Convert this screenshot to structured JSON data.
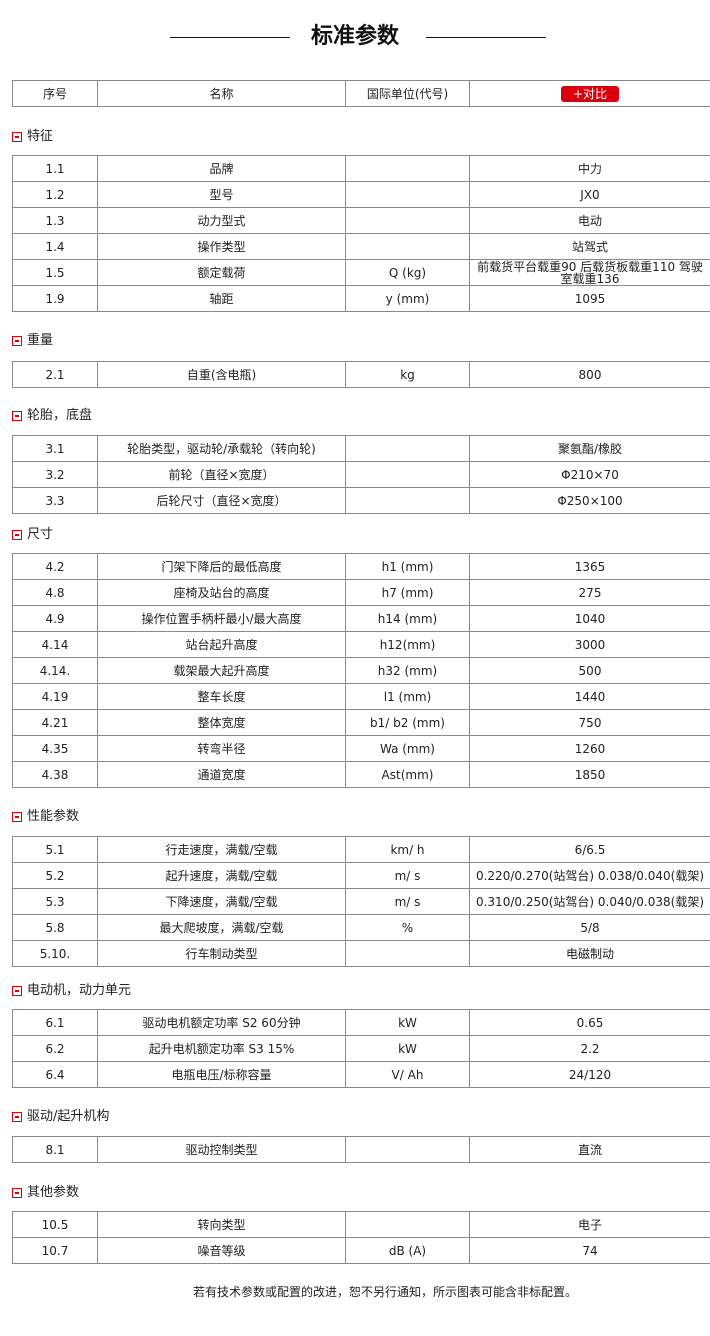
{
  "title": "标准参数",
  "header": {
    "col1": "序号",
    "col2": "名称",
    "col3": "国际单位(代号)",
    "compare_button": "+对比"
  },
  "accent_color": "#d9000e",
  "sections": [
    {
      "name": "特征",
      "rows": [
        [
          "1.1",
          "品牌",
          "",
          "中力"
        ],
        [
          "1.2",
          "型号",
          "",
          "JX0"
        ],
        [
          "1.3",
          "动力型式",
          "",
          "电动"
        ],
        [
          "1.4",
          "操作类型",
          "",
          "站驾式"
        ],
        [
          "1.5",
          "额定载荷",
          "Q (kg)",
          "前载货平台载重90 后载货板载重110 驾驶室载重136"
        ],
        [
          "1.9",
          "轴距",
          "y (mm)",
          "1095"
        ]
      ]
    },
    {
      "name": "重量",
      "rows": [
        [
          "2.1",
          "自重(含电瓶)",
          "kg",
          "800"
        ]
      ]
    },
    {
      "name": "轮胎，底盘",
      "rows": [
        [
          "3.1",
          "轮胎类型，驱动轮/承载轮（转向轮)",
          "",
          "聚氨酯/橡胶"
        ],
        [
          "3.2",
          "前轮（直径×宽度）",
          "",
          "Φ210×70"
        ],
        [
          "3.3",
          "后轮尺寸（直径×宽度）",
          "",
          "Φ250×100"
        ]
      ]
    },
    {
      "name": "尺寸",
      "rows": [
        [
          "4.2",
          "门架下降后的最低高度",
          "h1 (mm)",
          "1365"
        ],
        [
          "4.8",
          "座椅及站台的高度",
          "h7 (mm)",
          "275"
        ],
        [
          "4.9",
          "操作位置手柄杆最小/最大高度",
          "h14 (mm)",
          "1040"
        ],
        [
          "4.14",
          "站台起升高度",
          "h12(mm)",
          "3000"
        ],
        [
          "4.14.",
          "载架最大起升高度",
          "h32 (mm)",
          "500"
        ],
        [
          "4.19",
          "整车长度",
          "l1 (mm)",
          "1440"
        ],
        [
          "4.21",
          "整体宽度",
          "b1/ b2 (mm)",
          "750"
        ],
        [
          "4.35",
          "转弯半径",
          "Wa (mm)",
          "1260"
        ],
        [
          "4.38",
          "通道宽度",
          "Ast(mm)",
          "1850"
        ]
      ]
    },
    {
      "name": "性能参数",
      "rows": [
        [
          "5.1",
          "行走速度，满载/空载",
          "km/ h",
          "6/6.5"
        ],
        [
          "5.2",
          "起升速度，满载/空载",
          "m/ s",
          "0.220/0.270(站驾台) 0.038/0.040(载架)"
        ],
        [
          "5.3",
          "下降速度，满载/空载",
          "m/ s",
          "0.310/0.250(站驾台) 0.040/0.038(载架)"
        ],
        [
          "5.8",
          "最大爬坡度，满载/空载",
          "%",
          "5/8"
        ],
        [
          "5.10.",
          "行车制动类型",
          "",
          "电磁制动"
        ]
      ]
    },
    {
      "name": "电动机，动力单元",
      "rows": [
        [
          "6.1",
          "驱动电机额定功率 S2 60分钟",
          "kW",
          "0.65"
        ],
        [
          "6.2",
          "起升电机额定功率 S3 15%",
          "kW",
          "2.2"
        ],
        [
          "6.4",
          "电瓶电压/标称容量",
          "V/ Ah",
          "24/120"
        ]
      ]
    },
    {
      "name": "驱动/起升机构",
      "rows": [
        [
          "8.1",
          "驱动控制类型",
          "",
          "直流"
        ]
      ]
    },
    {
      "name": "其他参数",
      "rows": [
        [
          "10.5",
          "转向类型",
          "",
          "电子"
        ],
        [
          "10.7",
          "噪音等级",
          "dB (A)",
          "74"
        ]
      ]
    }
  ],
  "footer": "若有技术参数或配置的改进，恕不另行通知，所示图表可能含非标配置。"
}
